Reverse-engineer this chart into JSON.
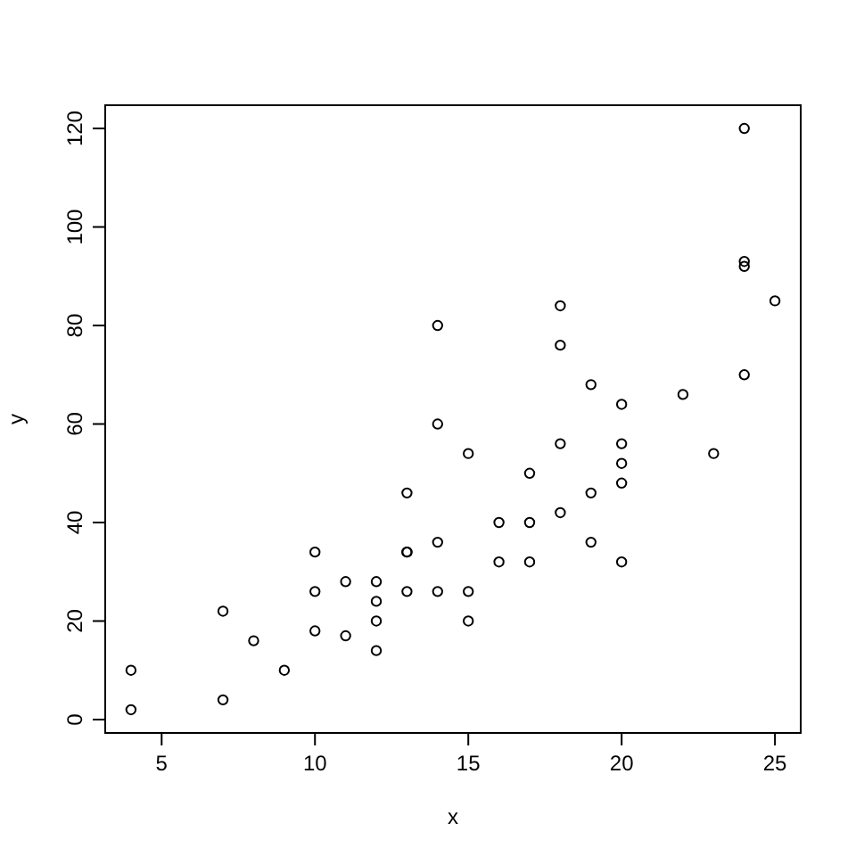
{
  "chart_data": {
    "type": "scatter",
    "xlabel": "x",
    "ylabel": "y",
    "x": [
      4,
      4,
      7,
      7,
      8,
      9,
      10,
      10,
      10,
      11,
      11,
      12,
      12,
      12,
      12,
      13,
      13,
      13,
      13,
      14,
      14,
      14,
      14,
      15,
      15,
      15,
      16,
      16,
      17,
      17,
      17,
      18,
      18,
      18,
      18,
      19,
      19,
      19,
      20,
      20,
      20,
      20,
      20,
      22,
      23,
      24,
      24,
      24,
      24,
      25
    ],
    "values": [
      2,
      10,
      4,
      22,
      16,
      10,
      18,
      26,
      34,
      17,
      28,
      14,
      20,
      24,
      28,
      26,
      34,
      34,
      46,
      26,
      36,
      60,
      80,
      20,
      26,
      54,
      32,
      40,
      32,
      40,
      50,
      42,
      56,
      76,
      84,
      36,
      46,
      68,
      32,
      48,
      52,
      56,
      64,
      66,
      54,
      70,
      92,
      93,
      120,
      85
    ],
    "color": "#000000",
    "marker": "circle",
    "xlim": [
      3.16,
      25.84
    ],
    "ylim": [
      -2.72,
      124.72
    ],
    "xticks": [
      5,
      10,
      15,
      20,
      25
    ],
    "yticks": [
      0,
      20,
      40,
      60,
      80,
      100,
      120
    ],
    "grid": false
  }
}
